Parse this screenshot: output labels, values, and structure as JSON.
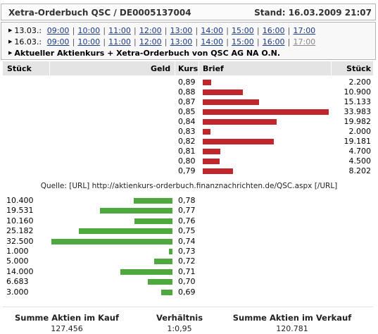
{
  "title": "Xetra-Orderbuch QSC / DE0005137004",
  "stand": "Stand: 16.03.2009 21:07",
  "nav": [
    {
      "date": "13.03.:",
      "times": [
        "09:00",
        "10:00",
        "11:00",
        "12:00",
        "13:00",
        "14:00",
        "15:00",
        "16:00",
        "17:00"
      ],
      "dim_last": false
    },
    {
      "date": "16.03.:",
      "times": [
        "09:00",
        "10:00",
        "11:00",
        "12:00",
        "13:00",
        "14:00",
        "15:00",
        "16:00",
        "17:00"
      ],
      "dim_last": true
    }
  ],
  "current_label": "Aktueller Aktienkurs + Xetra-Orderbuch von QSC AG NA O.N.",
  "headers": {
    "stueck_left": "Stück",
    "geld": "Geld",
    "kurs": "Kurs",
    "brief": "Brief",
    "stueck_right": "Stück"
  },
  "asks": [
    {
      "price": "0,89",
      "qty": "2.200"
    },
    {
      "price": "0,88",
      "qty": "10.900"
    },
    {
      "price": "0,87",
      "qty": "15.133"
    },
    {
      "price": "0,85",
      "qty": "33.983"
    },
    {
      "price": "0,84",
      "qty": "19.982"
    },
    {
      "price": "0,83",
      "qty": "2.000"
    },
    {
      "price": "0,82",
      "qty": "19.181"
    },
    {
      "price": "0,81",
      "qty": "4.700"
    },
    {
      "price": "0,80",
      "qty": "4.500"
    },
    {
      "price": "0,79",
      "qty": "8.202"
    }
  ],
  "source": "Quelle: [URL] http://aktienkurs-orderbuch.finanznachrichten.de/QSC.aspx [/URL]",
  "bids": [
    {
      "price": "0,78",
      "qty": "10.400"
    },
    {
      "price": "0,77",
      "qty": "19.531"
    },
    {
      "price": "0,76",
      "qty": "10.160"
    },
    {
      "price": "0,75",
      "qty": "25.182"
    },
    {
      "price": "0,74",
      "qty": "32.500"
    },
    {
      "price": "0,73",
      "qty": "1.000"
    },
    {
      "price": "0,72",
      "qty": "5.000"
    },
    {
      "price": "0,71",
      "qty": "14.000"
    },
    {
      "price": "0,70",
      "qty": "6.683"
    },
    {
      "price": "0,69",
      "qty": "3.000"
    }
  ],
  "summary": {
    "kauf_label": "Summe Aktien im Kauf",
    "kauf_value": "127.456",
    "ratio_label": "Verhältnis",
    "ratio_value": "1:0,95",
    "verkauf_label": "Summe Aktien im Verkauf",
    "verkauf_value": "120.781"
  },
  "colors": {
    "ask_bar": "#c0272d",
    "bid_bar": "#4fa83d",
    "header_bg": "#e4e4e4"
  }
}
